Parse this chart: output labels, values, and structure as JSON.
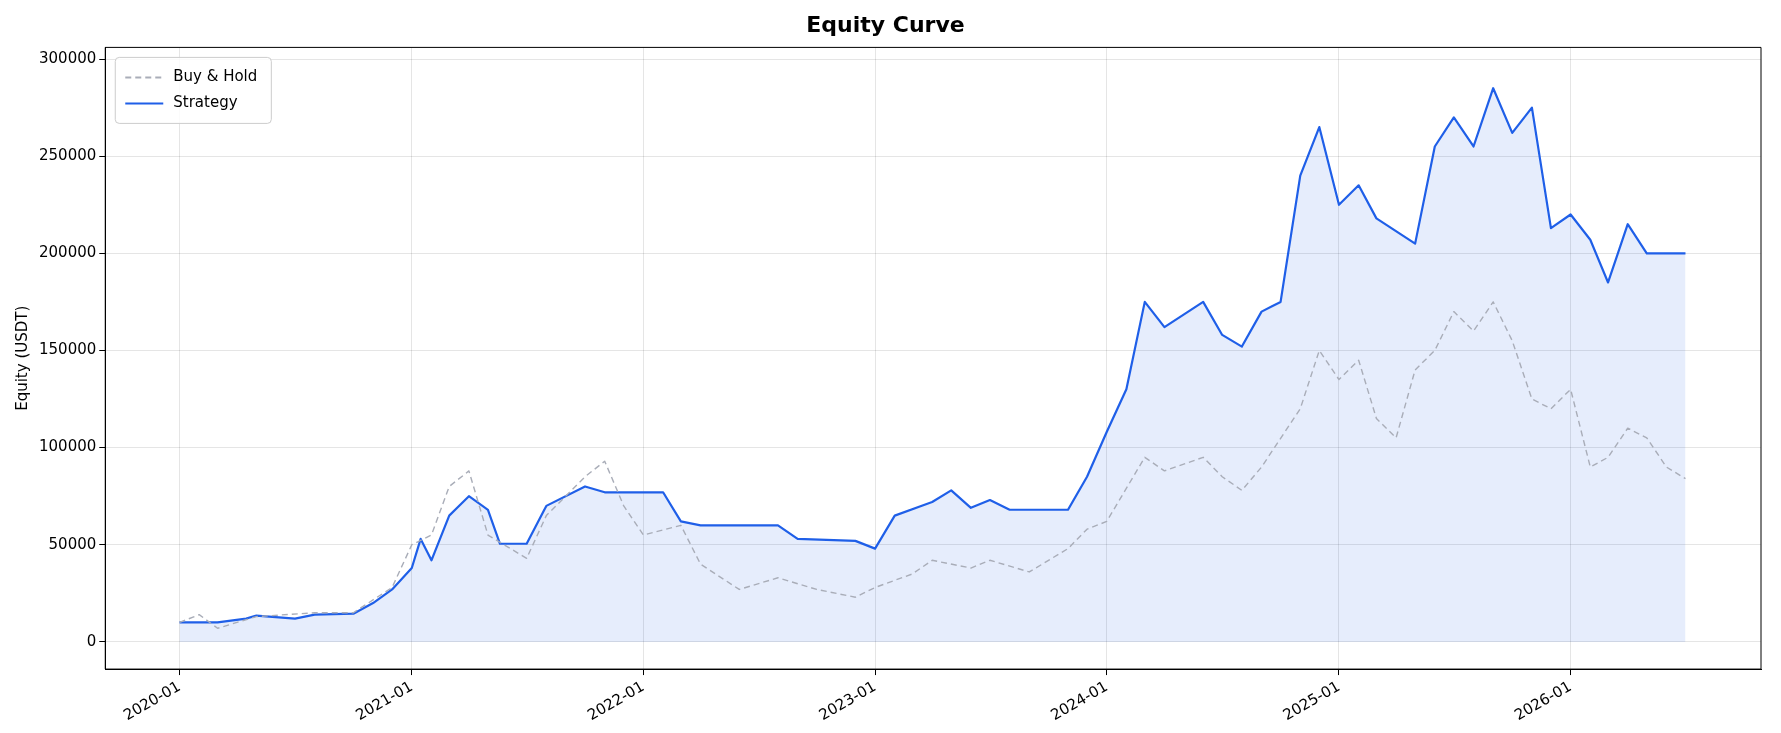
{
  "chart_data": {
    "type": "line",
    "title": "Equity Curve",
    "ylabel": "Equity (USDT)",
    "xlim": [
      "2019-09-06",
      "2026-10-28"
    ],
    "xticks": [
      "2020-01",
      "2021-01",
      "2022-01",
      "2023-01",
      "2024-01",
      "2025-01",
      "2026-01"
    ],
    "ylim": [
      -14000,
      306000
    ],
    "yticks": [
      0,
      50000,
      100000,
      150000,
      200000,
      250000,
      300000
    ],
    "grid": true,
    "legend": "top left",
    "series": [
      {
        "name": "Buy & Hold",
        "color": "#a9adb8",
        "line_style": "dashed",
        "x": [
          "2020-01",
          "2020-02",
          "2020-03",
          "2020-05",
          "2020-08",
          "2020-10",
          "2020-12",
          "2021-01",
          "2021-02",
          "2021-03",
          "2021-04",
          "2021-05",
          "2021-07",
          "2021-08",
          "2021-10",
          "2021-11",
          "2021-12",
          "2022-01",
          "2022-03",
          "2022-04",
          "2022-06",
          "2022-08",
          "2022-10",
          "2022-12",
          "2023-01",
          "2023-03",
          "2023-04",
          "2023-06",
          "2023-07",
          "2023-09",
          "2023-11",
          "2023-12",
          "2024-01",
          "2024-03",
          "2024-04",
          "2024-06",
          "2024-07",
          "2024-08",
          "2024-09",
          "2024-11",
          "2024-12",
          "2025-01",
          "2025-02",
          "2025-03",
          "2025-04",
          "2025-05",
          "2025-06",
          "2025-07",
          "2025-08",
          "2025-09",
          "2025-10",
          "2025-11",
          "2025-12",
          "2026-01",
          "2026-02",
          "2026-03",
          "2026-04",
          "2026-05",
          "2026-06",
          "2026-07"
        ],
        "values": [
          10000,
          14000,
          7000,
          13000,
          15000,
          15000,
          28000,
          50000,
          55000,
          80000,
          88000,
          55000,
          43000,
          65000,
          85000,
          93000,
          70000,
          55000,
          60000,
          40000,
          27000,
          33000,
          27000,
          23000,
          28000,
          35000,
          42000,
          38000,
          42000,
          36000,
          48000,
          58000,
          62000,
          95000,
          88000,
          95000,
          85000,
          78000,
          90000,
          120000,
          150000,
          135000,
          145000,
          115000,
          105000,
          140000,
          150000,
          170000,
          160000,
          175000,
          155000,
          125000,
          120000,
          130000,
          90000,
          95000,
          110000,
          105000,
          90000,
          84000
        ]
      },
      {
        "name": "Strategy",
        "type": "area",
        "color": "#1f5fe8",
        "line_style": "solid",
        "x": [
          "2020-01",
          "2020-03",
          "2020-04-15",
          "2020-05",
          "2020-07",
          "2020-08",
          "2020-10",
          "2020-11",
          "2020-12",
          "2021-01",
          "2021-01-15",
          "2021-02",
          "2021-03",
          "2021-04",
          "2021-05",
          "2021-05-20",
          "2021-07",
          "2021-08",
          "2021-10",
          "2021-11",
          "2022-02",
          "2022-03",
          "2022-04",
          "2022-08",
          "2022-09",
          "2022-12",
          "2023-01",
          "2023-02",
          "2023-04",
          "2023-05",
          "2023-06",
          "2023-07",
          "2023-08",
          "2023-11",
          "2023-12",
          "2024-01",
          "2024-02",
          "2024-03",
          "2024-04",
          "2024-06",
          "2024-07",
          "2024-08",
          "2024-09",
          "2024-10",
          "2024-11",
          "2024-12",
          "2025-01",
          "2025-02",
          "2025-03",
          "2025-05",
          "2025-06",
          "2025-07",
          "2025-08",
          "2025-09",
          "2025-10",
          "2025-11",
          "2025-12",
          "2026-01",
          "2026-02",
          "2026-03",
          "2026-04",
          "2026-05",
          "2026-07"
        ],
        "values": [
          10000,
          10000,
          12000,
          13500,
          12000,
          14000,
          14500,
          20000,
          27000,
          38000,
          53000,
          42000,
          65000,
          75000,
          68000,
          50500,
          50500,
          70000,
          80000,
          77000,
          77000,
          62000,
          60000,
          60000,
          53000,
          52000,
          48000,
          65000,
          72000,
          78000,
          69000,
          73000,
          68000,
          68000,
          85000,
          108000,
          130000,
          175000,
          162000,
          175000,
          158000,
          152000,
          170000,
          175000,
          240000,
          265000,
          225000,
          235000,
          218000,
          205000,
          255000,
          270000,
          255000,
          285000,
          262000,
          275000,
          213000,
          220000,
          207000,
          185000,
          215000,
          200000,
          200000
        ]
      }
    ]
  }
}
